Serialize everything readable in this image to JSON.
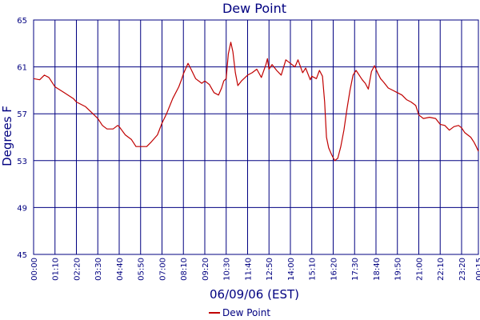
{
  "chart_data": {
    "type": "line",
    "title": "Dew Point",
    "xlabel": "06/09/06 (EST)",
    "ylabel": "Degrees F",
    "ylim": [
      45,
      65
    ],
    "yticks": [
      45,
      49,
      53,
      57,
      61,
      65
    ],
    "xticks": [
      "00:00",
      "01:10",
      "02:20",
      "03:30",
      "04:40",
      "05:50",
      "07:00",
      "08:10",
      "09:20",
      "10:30",
      "11:40",
      "12:50",
      "14:00",
      "15:10",
      "16:20",
      "17:30",
      "18:40",
      "19:50",
      "21:00",
      "22:10",
      "23:20",
      "00:15"
    ],
    "grid": true,
    "legend": "bottom-center",
    "colors": {
      "axis": "#000080",
      "grid": "#000080",
      "series": "#c00000",
      "text": "#000080"
    },
    "series": [
      {
        "name": "Dew Point",
        "color": "#c00000",
        "points": [
          [
            "00:00",
            60.0
          ],
          [
            "00:20",
            59.9
          ],
          [
            "00:35",
            60.3
          ],
          [
            "00:50",
            60.1
          ],
          [
            "01:05",
            59.5
          ],
          [
            "01:10",
            59.3
          ],
          [
            "01:40",
            58.8
          ],
          [
            "02:10",
            58.3
          ],
          [
            "02:20",
            58.0
          ],
          [
            "02:50",
            57.6
          ],
          [
            "03:10",
            57.1
          ],
          [
            "03:30",
            56.6
          ],
          [
            "03:45",
            56.0
          ],
          [
            "04:00",
            55.7
          ],
          [
            "04:20",
            55.7
          ],
          [
            "04:35",
            56.0
          ],
          [
            "04:40",
            55.9
          ],
          [
            "05:00",
            55.2
          ],
          [
            "05:20",
            54.8
          ],
          [
            "05:35",
            54.2
          ],
          [
            "05:50",
            54.2
          ],
          [
            "06:10",
            54.2
          ],
          [
            "06:25",
            54.6
          ],
          [
            "06:45",
            55.2
          ],
          [
            "07:00",
            56.2
          ],
          [
            "07:15",
            57.0
          ],
          [
            "07:35",
            58.3
          ],
          [
            "07:55",
            59.3
          ],
          [
            "08:05",
            60.0
          ],
          [
            "08:10",
            60.4
          ],
          [
            "08:25",
            61.3
          ],
          [
            "08:35",
            60.8
          ],
          [
            "08:50",
            60.0
          ],
          [
            "09:10",
            59.6
          ],
          [
            "09:20",
            59.8
          ],
          [
            "09:35",
            59.5
          ],
          [
            "09:50",
            58.8
          ],
          [
            "10:05",
            58.6
          ],
          [
            "10:15",
            59.2
          ],
          [
            "10:22",
            59.8
          ],
          [
            "10:30",
            60.0
          ],
          [
            "10:37",
            62.1
          ],
          [
            "10:45",
            63.1
          ],
          [
            "10:52",
            62.3
          ],
          [
            "11:00",
            60.5
          ],
          [
            "11:08",
            59.4
          ],
          [
            "11:20",
            59.8
          ],
          [
            "11:40",
            60.3
          ],
          [
            "11:55",
            60.5
          ],
          [
            "12:10",
            60.8
          ],
          [
            "12:25",
            60.1
          ],
          [
            "12:40",
            61.2
          ],
          [
            "12:45",
            61.7
          ],
          [
            "12:50",
            60.8
          ],
          [
            "13:00",
            61.2
          ],
          [
            "13:15",
            60.7
          ],
          [
            "13:30",
            60.3
          ],
          [
            "13:45",
            61.6
          ],
          [
            "14:00",
            61.3
          ],
          [
            "14:15",
            61.0
          ],
          [
            "14:25",
            61.6
          ],
          [
            "14:40",
            60.5
          ],
          [
            "14:50",
            60.9
          ],
          [
            "15:05",
            59.9
          ],
          [
            "15:10",
            60.2
          ],
          [
            "15:25",
            60.0
          ],
          [
            "15:35",
            60.7
          ],
          [
            "15:45",
            60.2
          ],
          [
            "15:52",
            58.0
          ],
          [
            "15:58",
            55.0
          ],
          [
            "16:05",
            54.1
          ],
          [
            "16:15",
            53.5
          ],
          [
            "16:25",
            53.0
          ],
          [
            "16:35",
            53.2
          ],
          [
            "16:45",
            54.2
          ],
          [
            "16:55",
            55.6
          ],
          [
            "17:05",
            57.4
          ],
          [
            "17:15",
            59.0
          ],
          [
            "17:25",
            60.3
          ],
          [
            "17:35",
            60.7
          ],
          [
            "17:45",
            60.3
          ],
          [
            "17:55",
            59.9
          ],
          [
            "18:05",
            59.6
          ],
          [
            "18:15",
            59.1
          ],
          [
            "18:25",
            60.6
          ],
          [
            "18:35",
            61.1
          ],
          [
            "18:45",
            60.5
          ],
          [
            "18:55",
            60.0
          ],
          [
            "19:05",
            59.7
          ],
          [
            "19:20",
            59.2
          ],
          [
            "19:35",
            59.0
          ],
          [
            "19:50",
            58.8
          ],
          [
            "20:05",
            58.6
          ],
          [
            "20:20",
            58.2
          ],
          [
            "20:35",
            58.0
          ],
          [
            "20:50",
            57.7
          ],
          [
            "21:00",
            56.9
          ],
          [
            "21:15",
            56.6
          ],
          [
            "21:35",
            56.7
          ],
          [
            "21:55",
            56.6
          ],
          [
            "22:10",
            56.1
          ],
          [
            "22:25",
            56.0
          ],
          [
            "22:40",
            55.6
          ],
          [
            "22:55",
            55.9
          ],
          [
            "23:10",
            56.0
          ],
          [
            "23:20",
            55.8
          ],
          [
            "23:30",
            55.4
          ],
          [
            "23:40",
            55.2
          ],
          [
            "23:50",
            55.0
          ],
          [
            "24:00",
            54.6
          ],
          [
            "24:08",
            54.2
          ],
          [
            "24:15",
            53.8
          ]
        ]
      }
    ]
  }
}
